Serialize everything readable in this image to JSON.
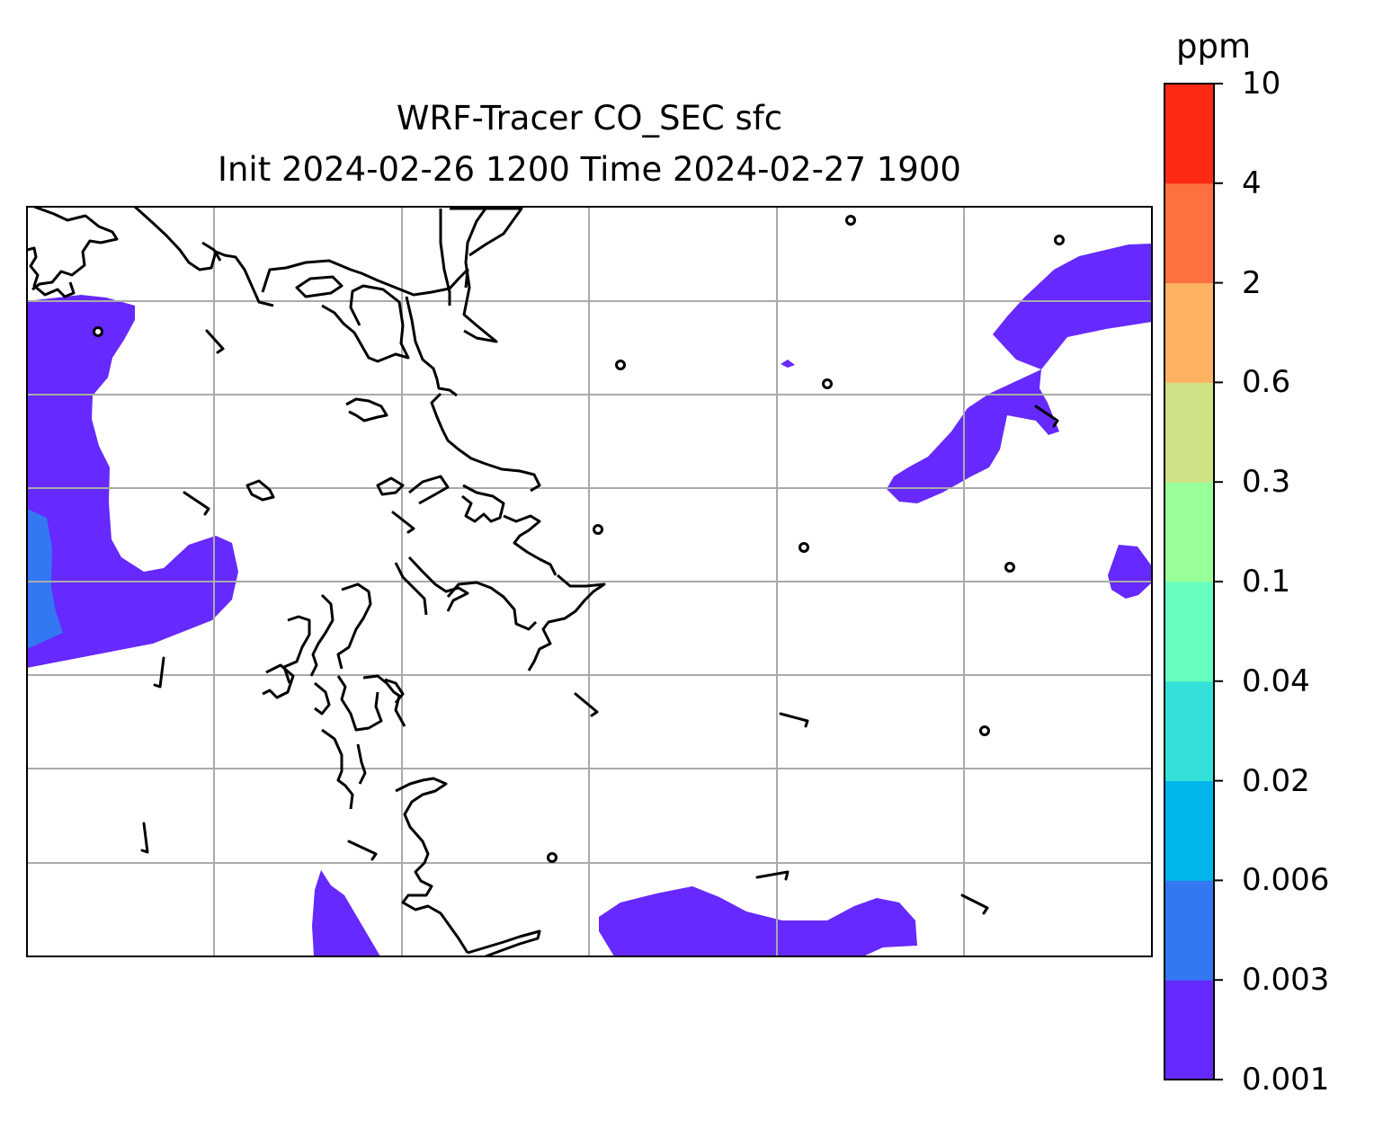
{
  "title": {
    "line1": "WRF-Tracer CO_SEC sfc",
    "line2": "Init 2024-02-26 1200 Time 2024-02-27 1900"
  },
  "colorbar": {
    "unit": "ppm",
    "levels": [
      "0.001",
      "0.003",
      "0.006",
      "0.02",
      "0.04",
      "0.1",
      "0.3",
      "0.6",
      "2",
      "4",
      "10"
    ],
    "colors": [
      "#6629ff",
      "#3377f2",
      "#00b5ec",
      "#33e1d9",
      "#66ffbf",
      "#99ff99",
      "#cde185",
      "#ffb362",
      "#ff7040",
      "#ff2a16"
    ]
  },
  "map": {
    "fill_colors": {
      "lowest": "#6629ff",
      "second": "#3377f2"
    },
    "gridline_color": "#aaaaaa",
    "coastline_color": "#000000",
    "wind_barbs_shown": true,
    "station_markers_shown": true
  }
}
